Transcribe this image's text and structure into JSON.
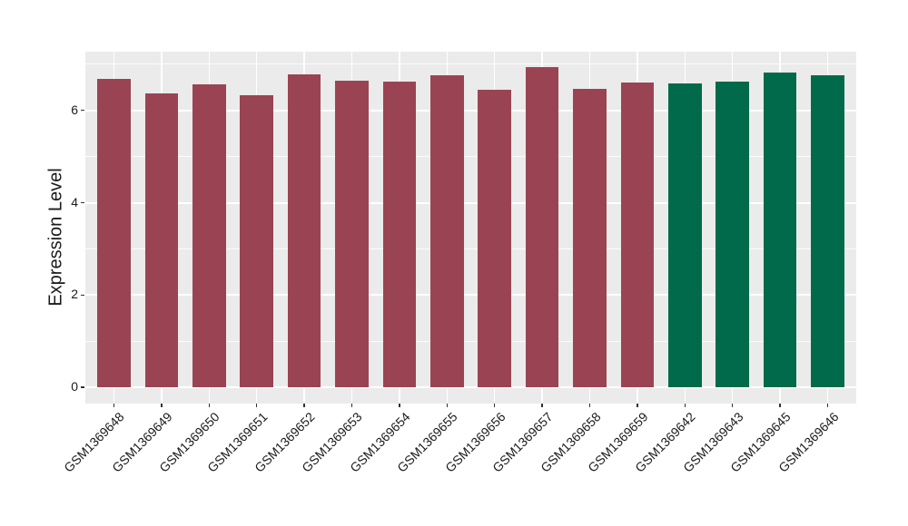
{
  "chart_data": {
    "type": "bar",
    "title": "",
    "xlabel": "",
    "ylabel": "Expression Level",
    "categories": [
      "GSM1369648",
      "GSM1369649",
      "GSM1369650",
      "GSM1369651",
      "GSM1369652",
      "GSM1369653",
      "GSM1369654",
      "GSM1369655",
      "GSM1369656",
      "GSM1369657",
      "GSM1369658",
      "GSM1369659",
      "GSM1369642",
      "GSM1369643",
      "GSM1369645",
      "GSM1369646"
    ],
    "values": [
      6.68,
      6.36,
      6.57,
      6.33,
      6.77,
      6.65,
      6.63,
      6.75,
      6.44,
      6.93,
      6.46,
      6.61,
      6.59,
      6.63,
      6.81,
      6.75
    ],
    "bar_colors": [
      "#9A4453",
      "#9A4453",
      "#9A4453",
      "#9A4453",
      "#9A4453",
      "#9A4453",
      "#9A4453",
      "#9A4453",
      "#9A4453",
      "#9A4453",
      "#9A4453",
      "#9A4453",
      "#006A4A",
      "#006A4A",
      "#006A4A",
      "#006A4A"
    ],
    "yticks": [
      0,
      2,
      4,
      6
    ],
    "yticks_minor": [
      1,
      3,
      5,
      7
    ],
    "ylim": [
      -0.35,
      7.27
    ],
    "x_tick_angle": 45,
    "legend": "none",
    "grid": true,
    "panel_background": "#EBEBEB",
    "grid_color": "#FFFFFF",
    "axis_text_color": "#1A1A1A",
    "tick_mark_color": "#333333",
    "bar_width_fraction": 0.7
  }
}
